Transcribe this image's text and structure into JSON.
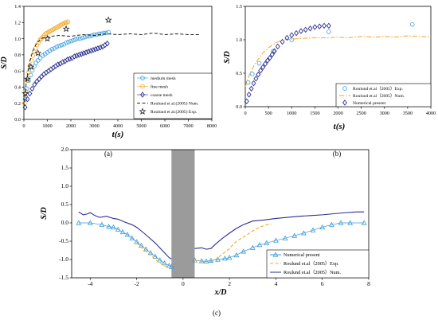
{
  "chart_data": [
    {
      "type": "scatter",
      "panel": "(a)",
      "xlabel": "t(s)",
      "ylabel": "S/D",
      "xlim": [
        0,
        8000
      ],
      "ylim": [
        0,
        1.4
      ],
      "xticks": [
        "0",
        "1000",
        "2000",
        "3000",
        "4000",
        "5000",
        "6000",
        "7000",
        "8000"
      ],
      "yticks": [
        "0.0",
        "0.2",
        "0.4",
        "0.6",
        "0.8",
        "1.0",
        "1.2",
        "1.4"
      ],
      "legend_position": "bottom-right",
      "grid": false,
      "series": [
        {
          "name": "medium mesh",
          "color": "#3a9ad9",
          "marker": "circle",
          "style": "markers",
          "x": [
            50,
            120,
            200,
            280,
            360,
            440,
            520,
            600,
            700,
            800,
            900,
            1000,
            1100,
            1200,
            1300,
            1400,
            1500,
            1600,
            1700,
            1800,
            1900,
            2000,
            2100,
            2200,
            2300,
            2400,
            2500,
            2600,
            2700,
            2800,
            2900,
            3000,
            3100,
            3200,
            3300,
            3400,
            3500,
            3600
          ],
          "y": [
            0.25,
            0.38,
            0.48,
            0.55,
            0.61,
            0.66,
            0.7,
            0.73,
            0.76,
            0.79,
            0.81,
            0.83,
            0.85,
            0.87,
            0.88,
            0.9,
            0.91,
            0.92,
            0.93,
            0.95,
            0.96,
            0.97,
            0.98,
            0.99,
            1.0,
            1.0,
            1.01,
            1.02,
            1.03,
            1.03,
            1.04,
            1.05,
            1.05,
            1.06,
            1.06,
            1.07,
            1.07,
            1.08
          ]
        },
        {
          "name": "fine mesh",
          "color": "#f5a623",
          "marker": "circle",
          "style": "markers",
          "x": [
            30,
            80,
            140,
            200,
            260,
            320,
            380,
            440,
            500,
            560,
            620,
            680,
            740,
            800,
            860,
            920,
            980,
            1040,
            1100,
            1160,
            1220,
            1280,
            1340,
            1400,
            1460,
            1520,
            1580,
            1640,
            1700,
            1760,
            1820,
            1880
          ],
          "y": [
            0.2,
            0.35,
            0.48,
            0.58,
            0.66,
            0.73,
            0.79,
            0.84,
            0.88,
            0.92,
            0.95,
            0.98,
            1.0,
            1.02,
            1.04,
            1.06,
            1.07,
            1.08,
            1.09,
            1.1,
            1.11,
            1.12,
            1.13,
            1.14,
            1.15,
            1.16,
            1.17,
            1.18,
            1.19,
            1.2,
            1.2,
            1.21
          ]
        },
        {
          "name": "coarse mesh",
          "color": "#2b2f8f",
          "marker": "diamond",
          "style": "markers",
          "x": [
            50,
            150,
            250,
            350,
            450,
            550,
            650,
            750,
            850,
            950,
            1050,
            1150,
            1250,
            1350,
            1450,
            1550,
            1650,
            1750,
            1850,
            1950,
            2050,
            2150,
            2250,
            2350,
            2450,
            2550,
            2650,
            2750,
            2850,
            2950,
            3050,
            3150,
            3250,
            3350,
            3450,
            3550
          ],
          "y": [
            0.15,
            0.25,
            0.32,
            0.38,
            0.43,
            0.47,
            0.5,
            0.53,
            0.56,
            0.58,
            0.6,
            0.62,
            0.64,
            0.66,
            0.68,
            0.69,
            0.71,
            0.72,
            0.74,
            0.75,
            0.76,
            0.78,
            0.79,
            0.8,
            0.81,
            0.82,
            0.83,
            0.84,
            0.85,
            0.86,
            0.87,
            0.88,
            0.89,
            0.9,
            0.92,
            0.94
          ]
        },
        {
          "name": "Roulund et al.(2005) Num.",
          "color": "#222222",
          "marker": "none",
          "style": "dashed",
          "x": [
            0,
            100,
            200,
            300,
            400,
            500,
            600,
            700,
            800,
            1000,
            1200,
            1500,
            2000,
            2500,
            3000,
            3500,
            4000,
            4500,
            5000,
            5500,
            6000,
            6500,
            7000,
            7500
          ],
          "y": [
            0.15,
            0.45,
            0.65,
            0.77,
            0.86,
            0.92,
            0.96,
            0.99,
            1.01,
            1.02,
            1.03,
            1.04,
            1.03,
            1.05,
            1.04,
            1.06,
            1.05,
            1.06,
            1.05,
            1.07,
            1.05,
            1.06,
            1.05,
            1.05
          ]
        },
        {
          "name": "Roulund et al.(2005) Exp.",
          "color": "#222222",
          "marker": "star",
          "style": "markers",
          "x": [
            60,
            150,
            300,
            600,
            1000,
            1800,
            3600
          ],
          "y": [
            0.32,
            0.5,
            0.65,
            0.82,
            1.0,
            1.12,
            1.23
          ]
        }
      ]
    },
    {
      "type": "scatter",
      "panel": "(b)",
      "xlabel": "t(s)",
      "ylabel": "S/D",
      "xlim": [
        0,
        4000
      ],
      "ylim": [
        0,
        1.5
      ],
      "xticks": [
        "0",
        "500",
        "1000",
        "1500",
        "2000",
        "2500",
        "3000",
        "3500",
        "4000"
      ],
      "yticks": [
        "0.0",
        "0.5",
        "1.0",
        "1.5"
      ],
      "legend_position": "bottom-right",
      "grid": false,
      "series": [
        {
          "name": "Roulund et.al（2005）Exp.",
          "color": "#3a9ad9",
          "marker": "circle",
          "style": "markers",
          "x": [
            60,
            150,
            300,
            600,
            1000,
            1800,
            3600
          ],
          "y": [
            0.36,
            0.49,
            0.65,
            0.83,
            1.0,
            1.12,
            1.23
          ]
        },
        {
          "name": "Roulund et.al（2005）Num.",
          "color": "#f5a623",
          "marker": "none",
          "style": "dashdot",
          "x": [
            0,
            100,
            200,
            300,
            400,
            500,
            600,
            700,
            800,
            1000,
            1200,
            1500,
            1800,
            2000,
            2200,
            2500,
            2800,
            3000,
            3200,
            3500,
            3800,
            4000
          ],
          "y": [
            0.3,
            0.5,
            0.63,
            0.73,
            0.82,
            0.88,
            0.93,
            0.97,
            1.0,
            1.01,
            1.02,
            1.03,
            1.03,
            1.04,
            1.03,
            1.05,
            1.04,
            1.05,
            1.04,
            1.06,
            1.05,
            1.04
          ]
        },
        {
          "name": "Numerical present",
          "color": "#2b2f8f",
          "marker": "diamond",
          "style": "markers",
          "x": [
            30,
            80,
            130,
            180,
            230,
            280,
            330,
            380,
            430,
            480,
            530,
            580,
            630,
            700,
            800,
            900,
            1000,
            1100,
            1200,
            1300,
            1400,
            1500,
            1600,
            1700,
            1800
          ],
          "y": [
            0.08,
            0.18,
            0.27,
            0.35,
            0.42,
            0.48,
            0.54,
            0.59,
            0.64,
            0.69,
            0.73,
            0.78,
            0.83,
            0.9,
            0.97,
            1.03,
            1.07,
            1.1,
            1.13,
            1.15,
            1.17,
            1.19,
            1.2,
            1.21,
            1.21
          ]
        }
      ]
    },
    {
      "type": "line",
      "panel": "(c)",
      "xlabel": "x/D",
      "ylabel": "S/D",
      "xlim": [
        -4.8,
        8
      ],
      "ylim": [
        -1.5,
        2.0
      ],
      "xticks": [
        "-4",
        "-2",
        "0",
        "2",
        "4",
        "6",
        "8"
      ],
      "xtick_values": [
        -4,
        -2,
        0,
        2,
        4,
        6,
        8
      ],
      "yticks": [
        "2.0",
        "1.5",
        "1.0",
        "0.5",
        "0.0",
        "-0.5",
        "-1.0",
        "-1.5"
      ],
      "ytick_values": [
        2.0,
        1.5,
        1.0,
        0.5,
        0.0,
        -0.5,
        -1.0,
        -1.5
      ],
      "pile_region": [
        -0.5,
        0.5
      ],
      "legend_position": "bottom-right",
      "grid": false,
      "series": [
        {
          "name": "Numerical present",
          "color": "#3a9ad9",
          "marker": "triangle",
          "style": "solid-thin",
          "x": [
            -4.5,
            -4.0,
            -3.5,
            -3.2,
            -3.0,
            -2.8,
            -2.6,
            -2.4,
            -2.2,
            -2.0,
            -1.8,
            -1.6,
            -1.4,
            -1.2,
            -1.0,
            -0.8,
            -0.6,
            -0.5,
            0.5,
            0.8,
            1.0,
            1.2,
            1.5,
            1.8,
            2.0,
            2.3,
            2.6,
            3.0,
            3.3,
            3.6,
            4.0,
            4.4,
            4.8,
            5.2,
            5.6,
            6.0,
            6.4,
            6.8,
            7.2,
            7.8
          ],
          "y": [
            0.0,
            0.0,
            -0.05,
            -0.1,
            -0.12,
            -0.18,
            -0.25,
            -0.32,
            -0.42,
            -0.52,
            -0.62,
            -0.72,
            -0.82,
            -0.92,
            -1.02,
            -1.1,
            -1.17,
            -1.2,
            -1.02,
            -1.04,
            -1.05,
            -1.03,
            -1.0,
            -0.97,
            -0.95,
            -0.88,
            -0.78,
            -0.68,
            -0.6,
            -0.55,
            -0.48,
            -0.42,
            -0.35,
            -0.28,
            -0.2,
            -0.12,
            -0.05,
            0.0,
            0.0,
            0.0
          ]
        },
        {
          "name": "Roulund et.al（2005）Exp.",
          "color": "#f5a623",
          "marker": "none",
          "style": "dashed",
          "x": [
            -2.0,
            -1.7,
            -1.4,
            -1.1,
            -0.8,
            -0.5,
            0.5,
            0.8,
            1.0,
            1.3,
            1.6,
            2.0,
            2.3,
            2.7,
            3.0,
            3.3,
            3.6,
            3.8
          ],
          "y": [
            -0.55,
            -0.72,
            -0.88,
            -1.05,
            -1.18,
            -1.22,
            -1.02,
            -1.05,
            -1.06,
            -1.05,
            -0.9,
            -0.7,
            -0.5,
            -0.35,
            -0.22,
            -0.12,
            -0.05,
            -0.03
          ]
        },
        {
          "name": "Roulund et.al（2005）Num.",
          "color": "#2b2f8f",
          "marker": "none",
          "style": "solid",
          "x": [
            -4.5,
            -4.3,
            -4.1,
            -4.0,
            -3.8,
            -3.6,
            -3.3,
            -3.0,
            -2.8,
            -2.5,
            -2.2,
            -2.0,
            -1.8,
            -1.5,
            -1.2,
            -0.9,
            -0.6,
            -0.5,
            0.5,
            0.8,
            1.0,
            1.2,
            1.4,
            1.7,
            2.0,
            2.3,
            2.6,
            3.0,
            3.5,
            4.0,
            4.5,
            5.0,
            5.5,
            6.0,
            6.5,
            7.0,
            7.5,
            7.8
          ],
          "y": [
            0.3,
            0.22,
            0.25,
            0.28,
            0.2,
            0.15,
            0.18,
            0.12,
            0.1,
            0.02,
            -0.05,
            -0.12,
            -0.22,
            -0.38,
            -0.55,
            -0.75,
            -0.95,
            -0.98,
            -0.7,
            -0.68,
            -0.72,
            -0.7,
            -0.58,
            -0.42,
            -0.28,
            -0.15,
            -0.05,
            0.05,
            0.08,
            0.12,
            0.15,
            0.18,
            0.2,
            0.22,
            0.25,
            0.28,
            0.3,
            0.3
          ]
        }
      ]
    }
  ]
}
